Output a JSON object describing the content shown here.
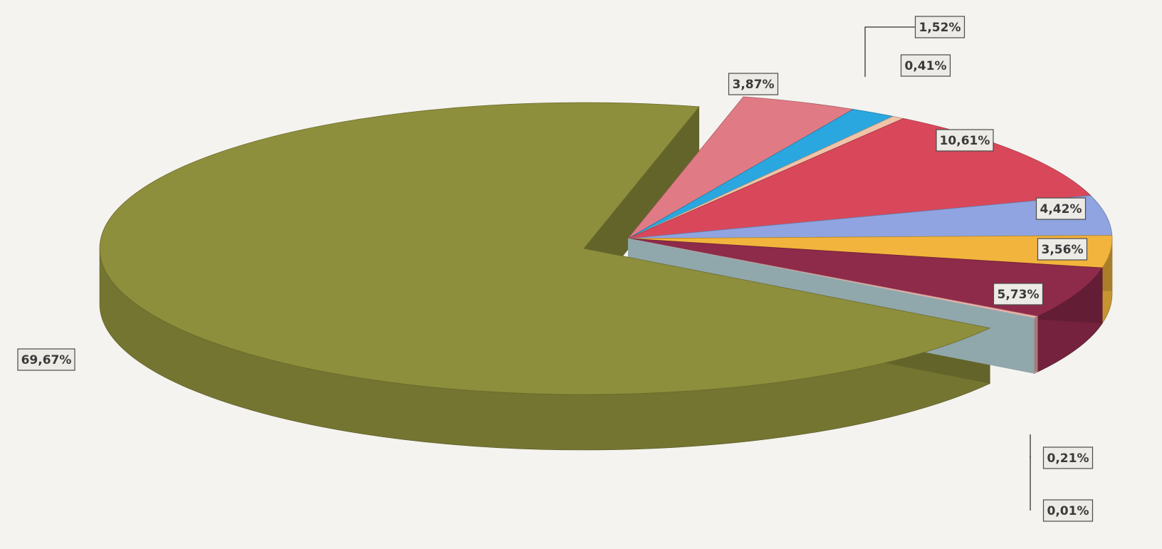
{
  "chart_data": {
    "type": "pie",
    "three_d": true,
    "exploded": true,
    "title": "",
    "slices": [
      {
        "value": 69.67,
        "label": "69,67%",
        "color": "#8e8f3c"
      },
      {
        "value": 3.87,
        "label": "3,87%",
        "color": "#e07b86"
      },
      {
        "value": 1.52,
        "label": "1,52%",
        "color": "#2aa7df"
      },
      {
        "value": 0.41,
        "label": "0,41%",
        "color": "#f0c4a8"
      },
      {
        "value": 10.61,
        "label": "10,61%",
        "color": "#d9485a"
      },
      {
        "value": 4.42,
        "label": "4,42%",
        "color": "#8fa4e0"
      },
      {
        "value": 3.56,
        "label": "3,56%",
        "color": "#f2b43c"
      },
      {
        "value": 5.73,
        "label": "5,73%",
        "color": "#8e2a4a"
      },
      {
        "value": 0.21,
        "label": "0,21%",
        "color": "#f1b0a8"
      },
      {
        "value": 0.01,
        "label": "0,01%",
        "color": "#cdeff4"
      }
    ]
  }
}
